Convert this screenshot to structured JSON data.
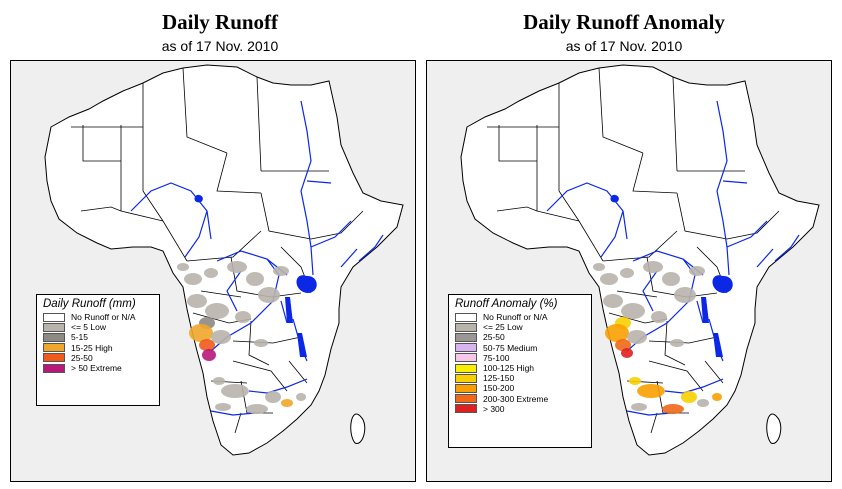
{
  "left": {
    "title": "Daily Runoff",
    "date_line": "as of  17 Nov. 2010",
    "legend": {
      "title": "Daily Runoff (mm)",
      "items": [
        {
          "label": "No Runoff or N/A",
          "color": "#ffffff"
        },
        {
          "label": "<= 5  Low",
          "color": "#b8b4ac"
        },
        {
          "label": "5-15",
          "color": "#8d8a84"
        },
        {
          "label": "15-25 High",
          "color": "#f0a62a"
        },
        {
          "label": "25-50",
          "color": "#f05a1c"
        },
        {
          "label": "> 50  Extreme",
          "color": "#b8187a"
        }
      ]
    }
  },
  "right": {
    "title": "Daily Runoff Anomaly",
    "date_line": "as of  17 Nov. 2010",
    "legend": {
      "title": "Runoff Anomaly (%)",
      "items": [
        {
          "label": "No Runoff or N/A",
          "color": "#ffffff"
        },
        {
          "label": "<= 25      Low",
          "color": "#b8b4ac"
        },
        {
          "label": "25-50",
          "color": "#9a9794"
        },
        {
          "label": "50-75     Medium",
          "color": "#d8b4f0"
        },
        {
          "label": "75-100",
          "color": "#f8c8e8"
        },
        {
          "label": "100-125  High",
          "color": "#f8f000"
        },
        {
          "label": "125-150",
          "color": "#f8d000"
        },
        {
          "label": "150-200",
          "color": "#f8a000"
        },
        {
          "label": "200-300  Extreme",
          "color": "#f06818"
        },
        {
          "label": "> 300",
          "color": "#e02020"
        }
      ]
    }
  },
  "colors": {
    "land": "#ffffff",
    "ocean": "#efefef",
    "water": "#0a28e6",
    "border": "#000000"
  }
}
